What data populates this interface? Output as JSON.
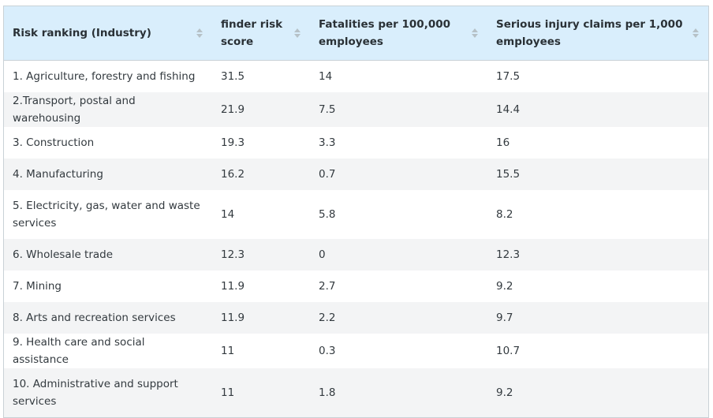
{
  "table": {
    "headers": [
      "Risk ranking (Industry)",
      "finder risk score",
      "Fatalities per 100,000 employees",
      "Serious injury claims per 1,000 employees"
    ],
    "sort_icon": "sort-updown-icon",
    "rows": [
      [
        "1. Agriculture, forestry and fishing",
        "31.5",
        "14",
        "17.5"
      ],
      [
        "2.Transport, postal and warehousing",
        "21.9",
        "7.5",
        "14.4"
      ],
      [
        "3. Construction",
        "19.3",
        "3.3",
        "16"
      ],
      [
        "4. Manufacturing",
        "16.2",
        "0.7",
        "15.5"
      ],
      [
        "5. Electricity, gas, water and waste services",
        "14",
        "5.8",
        "8.2"
      ],
      [
        "6. Wholesale trade",
        "12.3",
        "0",
        "12.3"
      ],
      [
        "7. Mining",
        "11.9",
        "2.7",
        "9.2"
      ],
      [
        "8. Arts and recreation services",
        "11.9",
        "2.2",
        "9.7"
      ],
      [
        "9. Health care and social assistance",
        "11",
        "0.3",
        "10.7"
      ],
      [
        "10. Administrative and support services",
        "11",
        "1.8",
        "9.2"
      ]
    ],
    "colors": {
      "header_bg": "#d9eefc",
      "stripe_bg": "#f3f4f5",
      "border": "#c9d1d6"
    }
  }
}
